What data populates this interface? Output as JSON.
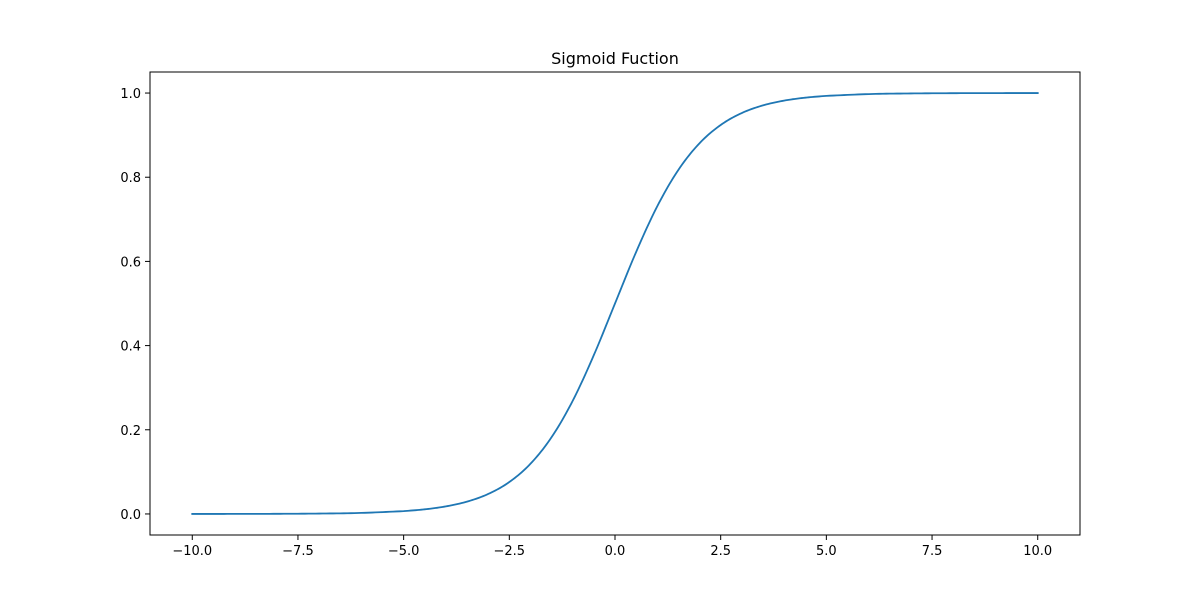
{
  "chart_data": {
    "type": "line",
    "title": "Sigmoid Fuction",
    "xlabel": "",
    "ylabel": "",
    "xlim": [
      -11.0,
      11.0
    ],
    "ylim": [
      -0.05,
      1.05
    ],
    "x_ticks": [
      -10.0,
      -7.5,
      -5.0,
      -2.5,
      0.0,
      2.5,
      5.0,
      7.5,
      10.0
    ],
    "x_tick_labels": [
      "−10.0",
      "−7.5",
      "−5.0",
      "−2.5",
      "0.0",
      "2.5",
      "5.0",
      "7.5",
      "10.0"
    ],
    "y_ticks": [
      0.0,
      0.2,
      0.4,
      0.6,
      0.8,
      1.0
    ],
    "y_tick_labels": [
      "0.0",
      "0.2",
      "0.4",
      "0.6",
      "0.8",
      "1.0"
    ],
    "grid": false,
    "line_color": "#1f77b4",
    "series": [
      {
        "x": [
          -10.0,
          -9.0,
          -8.0,
          -7.0,
          -6.0,
          -5.0,
          -4.5,
          -4.0,
          -3.5,
          -3.0,
          -2.5,
          -2.0,
          -1.5,
          -1.0,
          -0.5,
          0.0,
          0.5,
          1.0,
          1.5,
          2.0,
          2.5,
          3.0,
          3.5,
          4.0,
          4.5,
          5.0,
          6.0,
          7.0,
          8.0,
          9.0,
          10.0
        ],
        "values": [
          5e-05,
          0.00012,
          0.00034,
          0.00091,
          0.00247,
          0.00669,
          0.01099,
          0.01799,
          0.02931,
          0.04743,
          0.07586,
          0.1192,
          0.18243,
          0.26894,
          0.37754,
          0.5,
          0.62246,
          0.73106,
          0.81757,
          0.8808,
          0.92414,
          0.95257,
          0.97069,
          0.98201,
          0.98901,
          0.99331,
          0.99753,
          0.99909,
          0.99966,
          0.99988,
          0.99995
        ]
      }
    ]
  }
}
